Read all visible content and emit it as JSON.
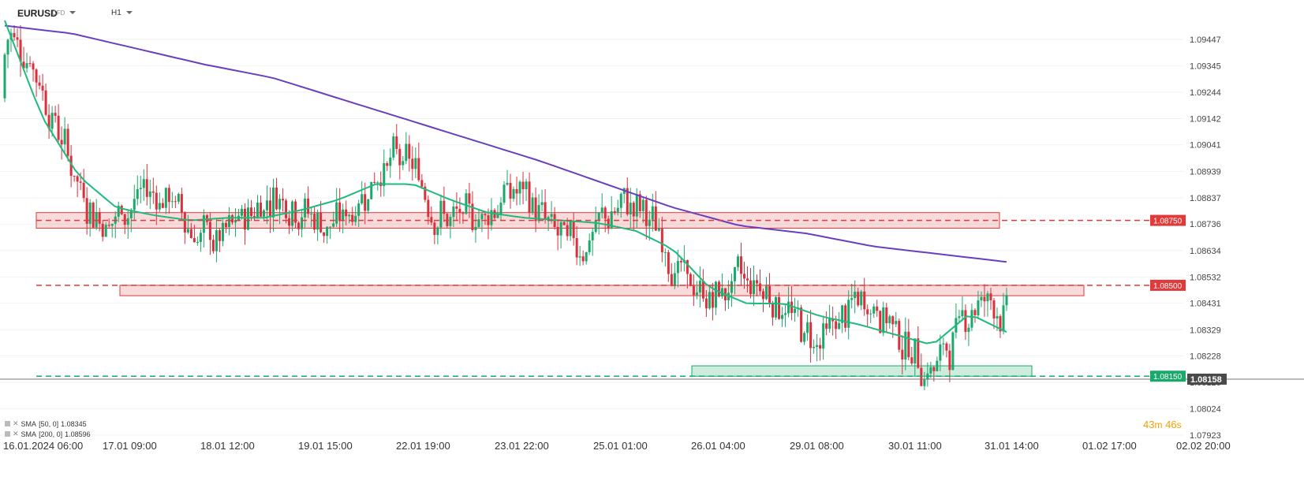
{
  "header": {
    "symbol": "EURUSD",
    "symbol_type": "CFD",
    "timeframe": "H1"
  },
  "chart_data": {
    "type": "candlestick",
    "symbol": "EURUSD",
    "timeframe": "H1",
    "y_ticks": [
      "1.09447",
      "1.09345",
      "1.09244",
      "1.09142",
      "1.09041",
      "1.08939",
      "1.08837",
      "1.08736",
      "1.08634",
      "1.08532",
      "1.08431",
      "1.08329",
      "1.08228",
      "1.08126",
      "1.08024",
      "1.07923"
    ],
    "ylim": [
      1.0788,
      1.0958
    ],
    "x_labels": [
      "16.01.2024  06:00",
      "17.01  09:00",
      "18.01  12:00",
      "19.01  15:00",
      "22.01  19:00",
      "23.01  22:00",
      "25.01  01:00",
      "26.01  04:00",
      "29.01  08:00",
      "30.01  11:00",
      "31.01  14:00",
      "01.02  17:00",
      "02.02  20:00"
    ],
    "price_levels": [
      {
        "value": 1.0875,
        "label": "1.08750",
        "color": "#e03a3a",
        "zone": [
          1.0872,
          1.0878
        ]
      },
      {
        "value": 1.085,
        "label": "1.08500",
        "color": "#e03a3a",
        "zone": [
          1.0846,
          1.085
        ]
      },
      {
        "value": 1.0815,
        "label": "1.08150",
        "color": "#1aa86b",
        "zone": [
          1.0815,
          1.0819
        ]
      }
    ],
    "current_price": {
      "value": 1.08158,
      "label": "1.08158"
    },
    "indicators": [
      {
        "name": "SMA",
        "params": "[50, 0]",
        "value": "1.08345",
        "color": "#1fba7d"
      },
      {
        "name": "SMA",
        "params": "[200, 0]",
        "value": "1.08596",
        "color": "#6a3fbf"
      }
    ],
    "sma50": [
      1.0952,
      1.0915,
      1.0892,
      1.088,
      1.0877,
      1.0875,
      1.0876,
      1.0876,
      1.0879,
      1.0883,
      1.0889,
      1.0889,
      1.0883,
      1.0878,
      1.0876,
      1.0875,
      1.0874,
      1.0871,
      1.0864,
      1.0849,
      1.0843,
      1.0843,
      1.0838,
      1.0835,
      1.0831,
      1.0827,
      1.0839,
      1.0832
    ],
    "sma200": [
      1.095,
      1.0947,
      1.0941,
      1.0935,
      1.093,
      1.0922,
      1.0914,
      1.0906,
      1.0898,
      1.0889,
      1.088,
      1.0873,
      1.087,
      1.0865,
      1.0862,
      1.0859
    ],
    "countdown": {
      "minutes": "43",
      "m": "m",
      "seconds": "46",
      "s": "s"
    }
  }
}
